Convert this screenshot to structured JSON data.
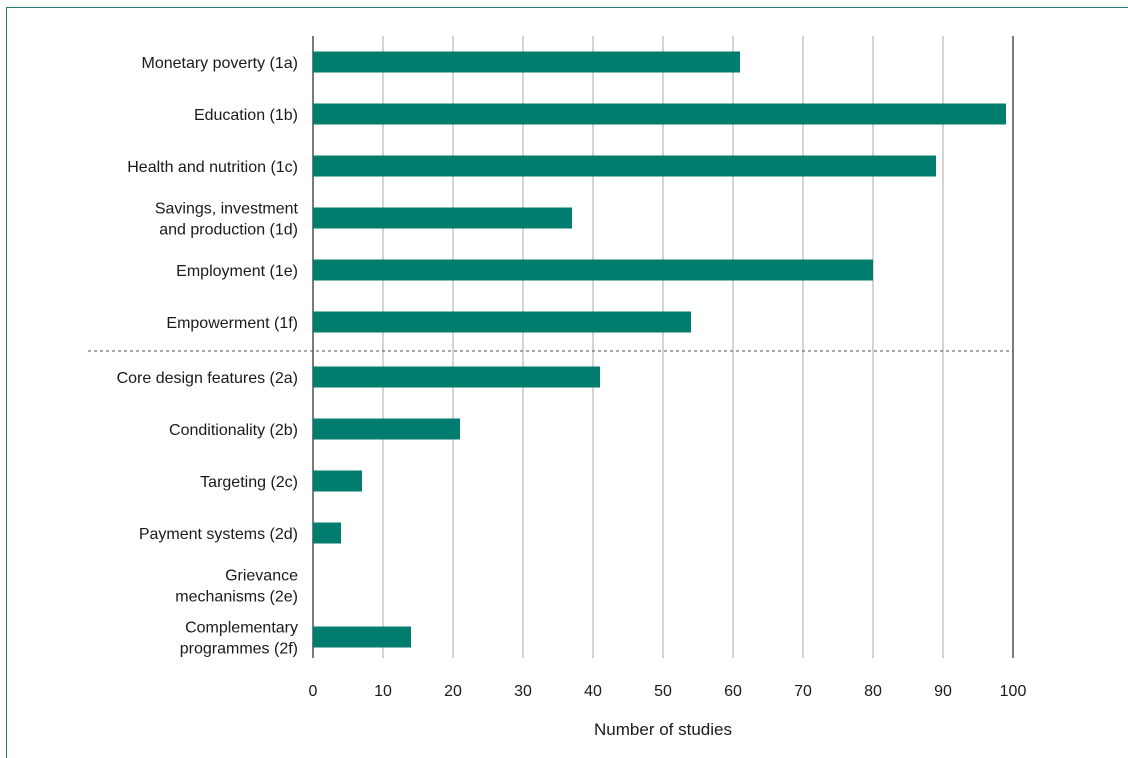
{
  "chart_data": {
    "type": "bar",
    "orientation": "horizontal",
    "categories": [
      [
        "Monetary poverty (1a)"
      ],
      [
        "Education (1b)"
      ],
      [
        "Health and nutrition (1c)"
      ],
      [
        "Savings, investment",
        "and production (1d)"
      ],
      [
        "Employment (1e)"
      ],
      [
        "Empowerment (1f)"
      ],
      [
        "Core design features (2a)"
      ],
      [
        "Conditionality (2b)"
      ],
      [
        "Targeting (2c)"
      ],
      [
        "Payment systems (2d)"
      ],
      [
        "Grievance",
        "mechanisms (2e)"
      ],
      [
        "Complementary",
        "programmes (2f)"
      ]
    ],
    "values": [
      61,
      99,
      89,
      37,
      80,
      54,
      41,
      21,
      7,
      4,
      0,
      14
    ],
    "xlabel": "Number of studies",
    "xlim": [
      0,
      100
    ],
    "xticks": [
      "0",
      "10",
      "20",
      "30",
      "40",
      "50",
      "60",
      "70",
      "80",
      "90",
      "100"
    ],
    "grid": "vertical",
    "divider_after_index": 5,
    "bar_color": "#007d6e"
  }
}
